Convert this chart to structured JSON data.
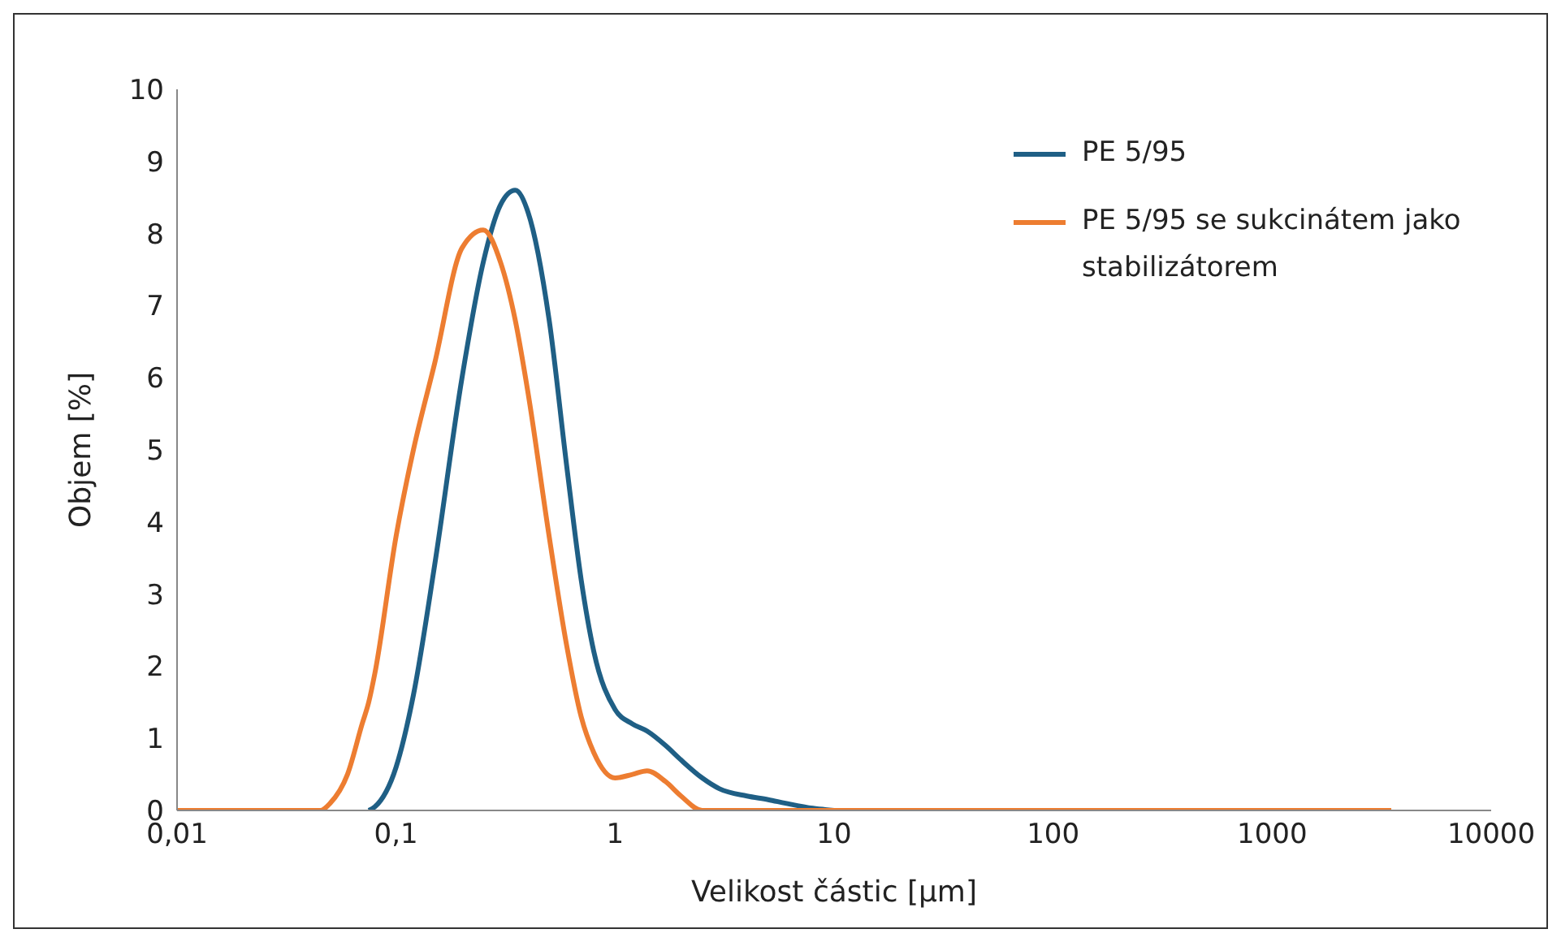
{
  "chart_data": {
    "type": "line",
    "xlabel": "Velikost částic [µm]",
    "ylabel": "Objem [%]",
    "x": [
      0.01,
      0.02,
      0.04,
      0.045,
      0.05,
      0.06,
      0.07,
      0.075,
      0.08,
      0.1,
      0.12,
      0.15,
      0.2,
      0.25,
      0.3,
      0.35,
      0.4,
      0.5,
      0.6,
      0.7,
      0.8,
      1,
      1.2,
      1.4,
      1.7,
      2,
      2.5,
      3,
      4,
      5,
      6,
      8,
      10,
      20,
      100,
      1000,
      3500
    ],
    "series": [
      {
        "name": "PE 5/95",
        "color": "#1f5f85",
        "values": [
          null,
          null,
          null,
          null,
          null,
          null,
          null,
          0,
          0.05,
          0.6,
          1.6,
          3.4,
          6.0,
          7.6,
          8.4,
          8.6,
          8.3,
          6.8,
          4.8,
          3.2,
          2.2,
          1.4,
          1.2,
          1.1,
          0.9,
          0.7,
          0.45,
          0.3,
          0.2,
          0.15,
          0.1,
          0.03,
          0,
          null,
          null,
          null,
          null
        ]
      },
      {
        "name": "PE 5/95 se sukcinátem jako stabilizátorem",
        "color": "#ed7d31",
        "values": [
          0,
          0,
          0,
          0,
          0.1,
          0.5,
          1.2,
          1.5,
          1.9,
          3.8,
          5.0,
          6.2,
          7.8,
          8.05,
          7.6,
          6.8,
          5.8,
          3.8,
          2.3,
          1.3,
          0.8,
          0.45,
          0.5,
          0.55,
          0.4,
          0.2,
          0,
          0,
          0,
          0,
          0,
          0,
          0,
          0,
          0,
          0,
          0
        ]
      }
    ],
    "log": "x",
    "xlim": [
      0.01,
      10000
    ],
    "xticks": [
      {
        "value": 0.01,
        "label": "0,01"
      },
      {
        "value": 0.1,
        "label": "0,1"
      },
      1,
      10,
      100,
      1000,
      10000
    ],
    "ylim": [
      0,
      10
    ],
    "yticks": [
      0,
      1,
      2,
      3,
      4,
      5,
      6,
      7,
      8,
      9,
      10
    ],
    "grid": false,
    "legend": "top right",
    "marker": "none",
    "line_style": "solid"
  }
}
